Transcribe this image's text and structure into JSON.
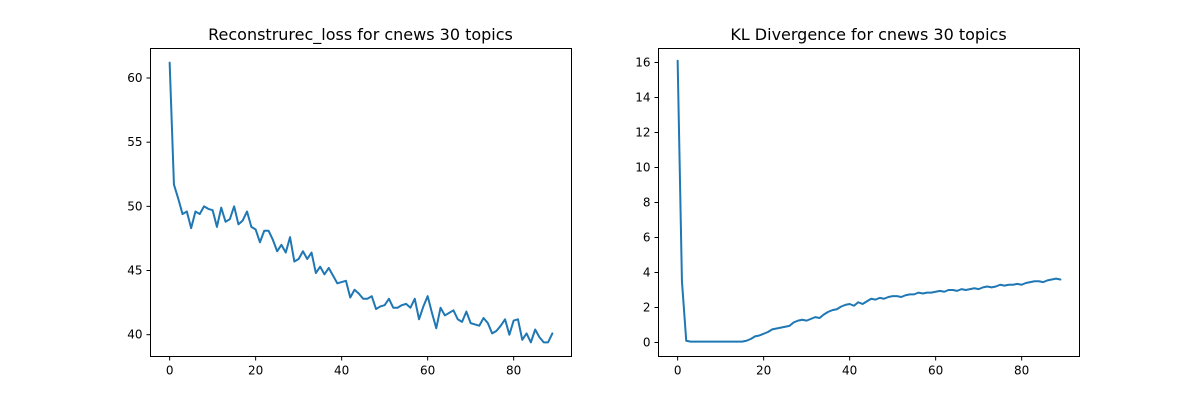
{
  "chart_data": [
    {
      "type": "line",
      "title": "Reconstrurec_loss for cnews 30 topics",
      "xlabel": "",
      "ylabel": "",
      "xlim": [
        -4.45,
        93.45
      ],
      "ylim": [
        38.3,
        62.3
      ],
      "xticks": [
        0,
        20,
        40,
        60,
        80
      ],
      "yticks": [
        40,
        45,
        50,
        55,
        60
      ],
      "grid": false,
      "series": [
        {
          "color": "#1f77b4",
          "x": [
            0,
            1,
            2,
            3,
            4,
            5,
            6,
            7,
            8,
            9,
            10,
            11,
            12,
            13,
            14,
            15,
            16,
            17,
            18,
            19,
            20,
            21,
            22,
            23,
            24,
            25,
            26,
            27,
            28,
            29,
            30,
            31,
            32,
            33,
            34,
            35,
            36,
            37,
            38,
            39,
            40,
            41,
            42,
            43,
            44,
            45,
            46,
            47,
            48,
            49,
            50,
            51,
            52,
            53,
            54,
            55,
            56,
            57,
            58,
            59,
            60,
            61,
            62,
            63,
            64,
            65,
            66,
            67,
            68,
            69,
            70,
            71,
            72,
            73,
            74,
            75,
            76,
            77,
            78,
            79,
            80,
            81,
            82,
            83,
            84,
            85,
            86,
            87,
            88,
            89
          ],
          "y": [
            61.2,
            51.7,
            50.6,
            49.4,
            49.6,
            48.3,
            49.6,
            49.4,
            50.0,
            49.8,
            49.7,
            48.4,
            49.9,
            48.8,
            49.0,
            50.0,
            48.6,
            48.9,
            49.6,
            48.4,
            48.2,
            47.2,
            48.1,
            48.1,
            47.4,
            46.5,
            47.0,
            46.4,
            47.6,
            45.7,
            45.9,
            46.5,
            45.9,
            46.4,
            44.8,
            45.3,
            44.7,
            45.2,
            44.6,
            44.0,
            44.1,
            44.2,
            42.9,
            43.5,
            43.2,
            42.8,
            42.8,
            43.0,
            42.0,
            42.2,
            42.3,
            42.8,
            42.1,
            42.1,
            42.3,
            42.4,
            42.1,
            42.8,
            41.2,
            42.2,
            43.0,
            41.7,
            40.5,
            42.1,
            41.5,
            41.7,
            41.9,
            41.2,
            41.0,
            41.8,
            40.9,
            40.8,
            40.7,
            41.3,
            40.9,
            40.1,
            40.3,
            40.7,
            41.2,
            40.0,
            41.1,
            41.2,
            39.6,
            40.1,
            39.4,
            40.4,
            39.8,
            39.4,
            39.4,
            40.1
          ]
        }
      ]
    },
    {
      "type": "line",
      "title": "KL Divergence for cnews 30 topics",
      "xlabel": "",
      "ylabel": "",
      "xlim": [
        -4.45,
        93.45
      ],
      "ylim": [
        -0.8,
        16.8
      ],
      "xticks": [
        0,
        20,
        40,
        60,
        80
      ],
      "yticks": [
        0,
        2,
        4,
        6,
        8,
        10,
        12,
        14,
        16
      ],
      "grid": false,
      "series": [
        {
          "color": "#1f77b4",
          "x": [
            0,
            1,
            2,
            3,
            4,
            5,
            6,
            7,
            8,
            9,
            10,
            11,
            12,
            13,
            14,
            15,
            16,
            17,
            18,
            19,
            20,
            21,
            22,
            23,
            24,
            25,
            26,
            27,
            28,
            29,
            30,
            31,
            32,
            33,
            34,
            35,
            36,
            37,
            38,
            39,
            40,
            41,
            42,
            43,
            44,
            45,
            46,
            47,
            48,
            49,
            50,
            51,
            52,
            53,
            54,
            55,
            56,
            57,
            58,
            59,
            60,
            61,
            62,
            63,
            64,
            65,
            66,
            67,
            68,
            69,
            70,
            71,
            72,
            73,
            74,
            75,
            76,
            77,
            78,
            79,
            80,
            81,
            82,
            83,
            84,
            85,
            86,
            87,
            88,
            89
          ],
          "y": [
            16.1,
            3.5,
            0.1,
            0.05,
            0.05,
            0.05,
            0.05,
            0.05,
            0.05,
            0.05,
            0.05,
            0.05,
            0.05,
            0.05,
            0.05,
            0.05,
            0.1,
            0.2,
            0.35,
            0.4,
            0.5,
            0.6,
            0.75,
            0.8,
            0.85,
            0.9,
            0.95,
            1.15,
            1.25,
            1.3,
            1.25,
            1.35,
            1.45,
            1.4,
            1.6,
            1.75,
            1.85,
            1.9,
            2.05,
            2.15,
            2.2,
            2.1,
            2.3,
            2.2,
            2.35,
            2.5,
            2.45,
            2.55,
            2.5,
            2.6,
            2.65,
            2.65,
            2.6,
            2.7,
            2.75,
            2.75,
            2.85,
            2.8,
            2.85,
            2.85,
            2.9,
            2.95,
            2.9,
            3.0,
            3.0,
            2.95,
            3.05,
            3.0,
            3.05,
            3.1,
            3.05,
            3.15,
            3.2,
            3.15,
            3.2,
            3.3,
            3.25,
            3.3,
            3.3,
            3.35,
            3.3,
            3.4,
            3.45,
            3.5,
            3.5,
            3.45,
            3.55,
            3.6,
            3.65,
            3.6
          ]
        }
      ]
    }
  ]
}
